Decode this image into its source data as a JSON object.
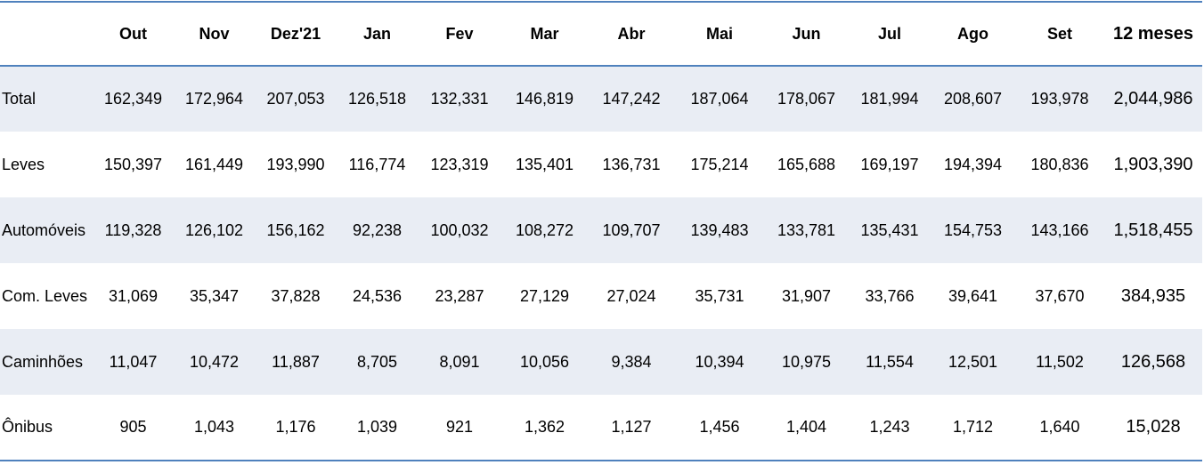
{
  "table": {
    "header": [
      "Out",
      "Nov",
      "Dez'21",
      "Jan",
      "Fev",
      "Mar",
      "Abr",
      "Mai",
      "Jun",
      "Jul",
      "Ago",
      "Set",
      "12 meses"
    ],
    "rows": [
      {
        "label": "Total",
        "values": [
          "162,349",
          "172,964",
          "207,053",
          "126,518",
          "132,331",
          "146,819",
          "147,242",
          "187,064",
          "178,067",
          "181,994",
          "208,607",
          "193,978",
          "2,044,986"
        ]
      },
      {
        "label": "Leves",
        "values": [
          "150,397",
          "161,449",
          "193,990",
          "116,774",
          "123,319",
          "135,401",
          "136,731",
          "175,214",
          "165,688",
          "169,197",
          "194,394",
          "180,836",
          "1,903,390"
        ]
      },
      {
        "label": "Automóveis",
        "values": [
          "119,328",
          "126,102",
          "156,162",
          "92,238",
          "100,032",
          "108,272",
          "109,707",
          "139,483",
          "133,781",
          "135,431",
          "154,753",
          "143,166",
          "1,518,455"
        ]
      },
      {
        "label": "Com. Leves",
        "values": [
          "31,069",
          "35,347",
          "37,828",
          "24,536",
          "23,287",
          "27,129",
          "27,024",
          "35,731",
          "31,907",
          "33,766",
          "39,641",
          "37,670",
          "384,935"
        ]
      },
      {
        "label": "Caminhões",
        "values": [
          "11,047",
          "10,472",
          "11,887",
          "8,705",
          "8,091",
          "10,056",
          "9,384",
          "10,394",
          "10,975",
          "11,554",
          "12,501",
          "11,502",
          "126,568"
        ]
      },
      {
        "label": "Ônibus",
        "values": [
          "905",
          "1,043",
          "1,176",
          "1,039",
          "921",
          "1,362",
          "1,127",
          "1,456",
          "1,404",
          "1,243",
          "1,712",
          "1,640",
          "15,028"
        ]
      }
    ]
  }
}
